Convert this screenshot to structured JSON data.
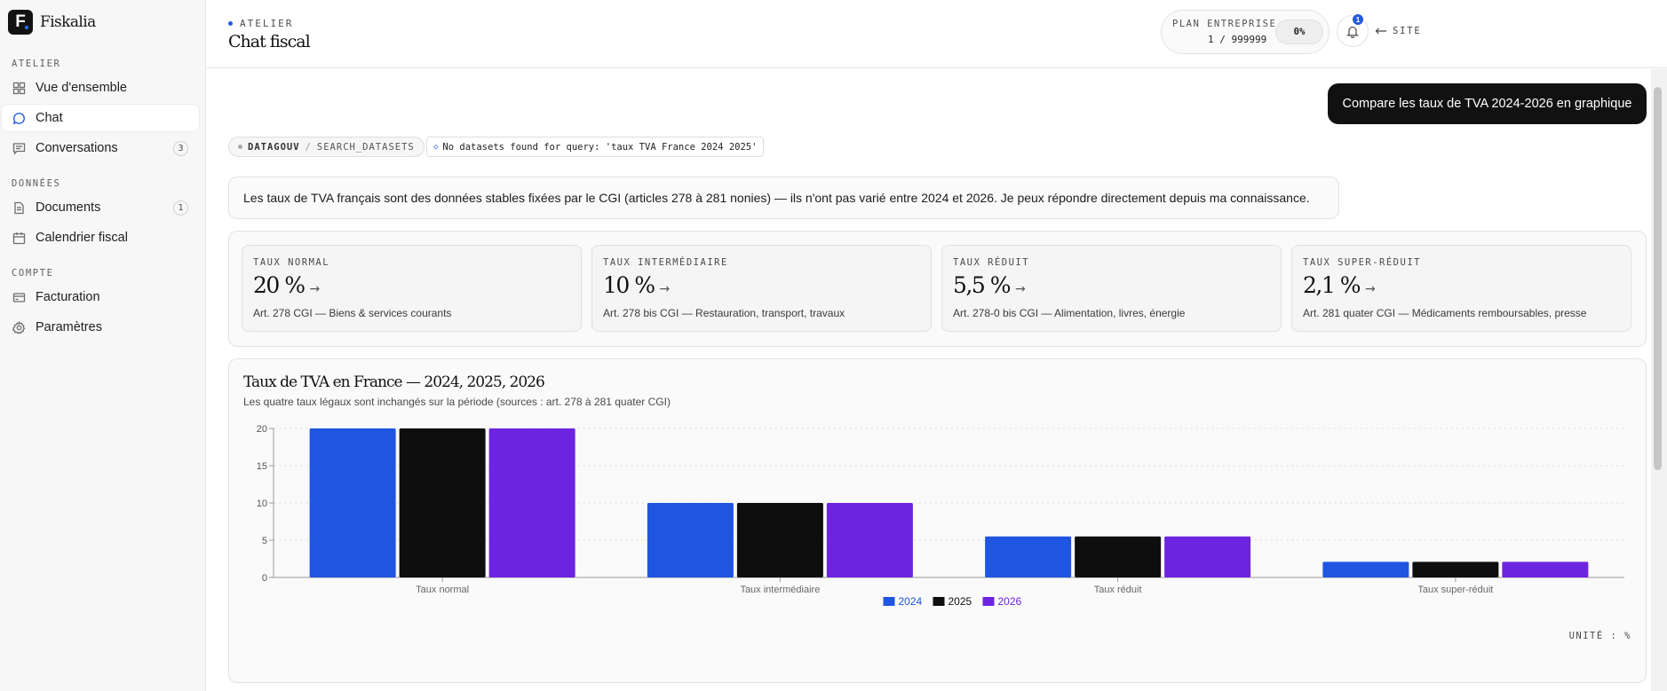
{
  "brand": {
    "name": "Fiskalia",
    "logo_letter": "F"
  },
  "sidebar": {
    "sections": [
      {
        "title": "ATELIER",
        "items": [
          {
            "label": "Vue d'ensemble",
            "icon": "grid-icon"
          },
          {
            "label": "Chat",
            "icon": "chat-icon",
            "active": true
          },
          {
            "label": "Conversations",
            "icon": "message-icon",
            "count": "3"
          }
        ]
      },
      {
        "title": "DONNÉES",
        "items": [
          {
            "label": "Documents",
            "icon": "document-icon",
            "count": "1"
          },
          {
            "label": "Calendrier fiscal",
            "icon": "calendar-icon"
          }
        ]
      },
      {
        "title": "COMPTE",
        "items": [
          {
            "label": "Facturation",
            "icon": "credit-card-icon"
          },
          {
            "label": "Paramètres",
            "icon": "gear-icon"
          }
        ]
      }
    ]
  },
  "header": {
    "eyebrow": "ATELIER",
    "title": "Chat fiscal",
    "plan": {
      "label": "PLAN ENTREPRISE",
      "usage": "1 / 999999",
      "percent_label": "0%",
      "percent": 0
    },
    "notifications": "1",
    "site_link": "SITE"
  },
  "chat": {
    "user_message": "Compare les taux de TVA 2024-2026 en graphique",
    "tool": {
      "source": "DATAGOUV",
      "separator": "/",
      "function": "SEARCH_DATASETS"
    },
    "tool_result": "No datasets found for query: 'taux TVA France 2024 2025'",
    "assistant_message": "Les taux de TVA français sont des données stables fixées par le CGI (articles 278 à 281 nonies) — ils n'ont pas varié entre 2024 et 2026. Je peux répondre directement depuis ma connaissance."
  },
  "cards": [
    {
      "label": "TAUX NORMAL",
      "value": "20 %",
      "desc": "Art. 278 CGI — Biens & services courants"
    },
    {
      "label": "TAUX INTERMÉDIAIRE",
      "value": "10 %",
      "desc": "Art. 278 bis CGI — Restauration, transport, travaux"
    },
    {
      "label": "TAUX RÉDUIT",
      "value": "5,5 %",
      "desc": "Art. 278-0 bis CGI — Alimentation, livres, énergie"
    },
    {
      "label": "TAUX SUPER-RÉDUIT",
      "value": "2,1 %",
      "desc": "Art. 281 quater CGI — Médicaments remboursables, presse"
    }
  ],
  "chart_data": {
    "type": "bar",
    "title": "Taux de TVA en France — 2024, 2025, 2026",
    "subtitle": "Les quatre taux légaux sont inchangés sur la période (sources : art. 278 à 281 quater CGI)",
    "categories": [
      "Taux normal",
      "Taux intermédiaire",
      "Taux réduit",
      "Taux super-réduit"
    ],
    "series": [
      {
        "name": "2024",
        "values": [
          20,
          10,
          5.5,
          2.1
        ],
        "color": "#1f55e0"
      },
      {
        "name": "2025",
        "values": [
          20,
          10,
          5.5,
          2.1
        ],
        "color": "#0e0e0e"
      },
      {
        "name": "2026",
        "values": [
          20,
          10,
          5.5,
          2.1
        ],
        "color": "#6d24e0"
      }
    ],
    "yticks": [
      0,
      5,
      10,
      15,
      20
    ],
    "ylim": [
      0,
      20
    ],
    "grid": true,
    "legend": "bottom-center",
    "unit_label": "UNITÉ : %"
  }
}
